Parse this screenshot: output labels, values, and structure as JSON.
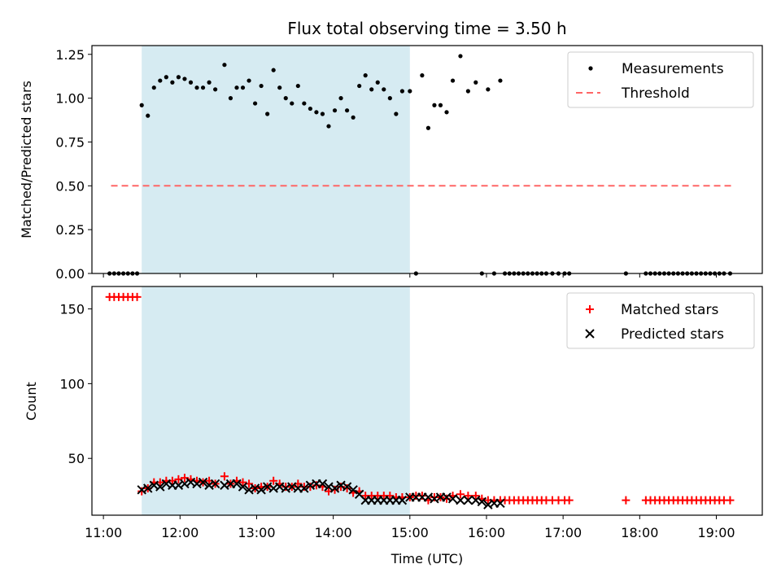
{
  "chart_data": [
    {
      "type": "scatter",
      "title": "Flux total observing time = 3.50 h",
      "xlabel": "",
      "ylabel": "Matched/Predicted stars",
      "ylim": [
        0.0,
        1.3
      ],
      "yticks": [
        0.0,
        0.25,
        0.5,
        0.75,
        1.0,
        1.25
      ],
      "ytick_labels": [
        "0.00",
        "0.25",
        "0.50",
        "0.75",
        "1.00",
        "1.25"
      ],
      "xlim": [
        10.85,
        19.6
      ],
      "xticks": [
        11,
        12,
        13,
        14,
        15,
        16,
        17,
        18,
        19
      ],
      "grid": false,
      "legend": "top-right",
      "shaded_span": [
        11.5,
        15.0
      ],
      "shaded_color": "#add8e6",
      "series": [
        {
          "name": "Measurements",
          "kind": "points",
          "color": "#000000",
          "x": [
            11.08,
            11.14,
            11.2,
            11.26,
            11.32,
            11.38,
            11.44,
            11.5,
            11.58,
            11.66,
            11.74,
            11.82,
            11.9,
            11.98,
            12.06,
            12.14,
            12.22,
            12.3,
            12.38,
            12.46,
            12.58,
            12.66,
            12.74,
            12.82,
            12.9,
            12.98,
            13.06,
            13.14,
            13.22,
            13.3,
            13.38,
            13.46,
            13.54,
            13.62,
            13.7,
            13.78,
            13.86,
            13.94,
            14.02,
            14.1,
            14.18,
            14.26,
            14.34,
            14.42,
            14.5,
            14.58,
            14.66,
            14.74,
            14.82,
            14.9,
            15.0,
            15.08,
            15.16,
            15.24,
            15.32,
            15.4,
            15.48,
            15.56,
            15.66,
            15.76,
            15.86,
            15.94,
            16.02,
            16.1,
            16.18,
            16.24,
            16.3,
            16.36,
            16.42,
            16.48,
            16.54,
            16.6,
            16.66,
            16.72,
            16.78,
            16.86,
            16.94,
            17.02,
            17.08,
            17.82,
            18.08,
            18.14,
            18.2,
            18.26,
            18.32,
            18.38,
            18.44,
            18.5,
            18.56,
            18.62,
            18.68,
            18.74,
            18.8,
            18.86,
            18.92,
            18.98,
            19.04,
            19.1,
            19.18
          ],
          "y": [
            0,
            0,
            0,
            0,
            0,
            0,
            0,
            0.96,
            0.9,
            1.06,
            1.1,
            1.12,
            1.09,
            1.12,
            1.11,
            1.09,
            1.06,
            1.06,
            1.09,
            1.05,
            1.19,
            1.0,
            1.06,
            1.06,
            1.1,
            0.97,
            1.07,
            0.91,
            1.16,
            1.06,
            1.0,
            0.97,
            1.07,
            0.97,
            0.94,
            0.92,
            0.91,
            0.84,
            0.93,
            1.0,
            0.93,
            0.89,
            1.07,
            1.13,
            1.05,
            1.09,
            1.05,
            1.0,
            0.91,
            1.04,
            1.04,
            0,
            1.13,
            0.83,
            0.96,
            0.96,
            0.92,
            1.1,
            1.24,
            1.04,
            1.09,
            0,
            1.05,
            0,
            1.1,
            0,
            0,
            0,
            0,
            0,
            0,
            0,
            0,
            0,
            0,
            0,
            0,
            0,
            0,
            0,
            0,
            0,
            0,
            0,
            0,
            0,
            0,
            0,
            0,
            0,
            0,
            0,
            0,
            0,
            0,
            0,
            0,
            0,
            0
          ]
        },
        {
          "name": "Threshold",
          "kind": "dashed-line",
          "color": "#ff6666",
          "x": [
            11.1,
            19.2
          ],
          "y": [
            0.5,
            0.5
          ]
        }
      ]
    },
    {
      "type": "scatter",
      "title": "",
      "xlabel": "Time (UTC)",
      "ylabel": "Count",
      "ylim": [
        12,
        165
      ],
      "yticks": [
        50,
        100,
        150
      ],
      "ytick_labels": [
        "50",
        "100",
        "150"
      ],
      "xlim": [
        10.85,
        19.6
      ],
      "xticks": [
        11,
        12,
        13,
        14,
        15,
        16,
        17,
        18,
        19
      ],
      "xtick_labels": [
        "11:00",
        "12:00",
        "13:00",
        "14:00",
        "15:00",
        "16:00",
        "17:00",
        "18:00",
        "19:00"
      ],
      "grid": false,
      "legend": "top-right",
      "shaded_span": [
        11.5,
        15.0
      ],
      "shaded_color": "#add8e6",
      "series": [
        {
          "name": "Matched stars",
          "marker": "+",
          "color": "#ff0000",
          "x": [
            11.08,
            11.14,
            11.2,
            11.26,
            11.32,
            11.38,
            11.44,
            11.5,
            11.58,
            11.66,
            11.74,
            11.82,
            11.9,
            11.98,
            12.06,
            12.14,
            12.22,
            12.3,
            12.38,
            12.46,
            12.58,
            12.66,
            12.74,
            12.82,
            12.9,
            12.98,
            13.06,
            13.14,
            13.22,
            13.3,
            13.38,
            13.46,
            13.54,
            13.62,
            13.7,
            13.78,
            13.86,
            13.94,
            14.02,
            14.1,
            14.18,
            14.26,
            14.34,
            14.42,
            14.5,
            14.58,
            14.66,
            14.74,
            14.82,
            14.9,
            15.0,
            15.08,
            15.16,
            15.24,
            15.32,
            15.4,
            15.48,
            15.56,
            15.66,
            15.76,
            15.86,
            15.94,
            16.02,
            16.1,
            16.18,
            16.24,
            16.3,
            16.36,
            16.42,
            16.48,
            16.54,
            16.6,
            16.66,
            16.72,
            16.78,
            16.86,
            16.94,
            17.02,
            17.08,
            17.82,
            18.08,
            18.14,
            18.2,
            18.26,
            18.32,
            18.38,
            18.44,
            18.5,
            18.56,
            18.62,
            18.68,
            18.74,
            18.8,
            18.86,
            18.92,
            18.98,
            19.04,
            19.1,
            19.18
          ],
          "y": [
            158,
            158,
            158,
            158,
            158,
            158,
            158,
            28,
            30,
            34,
            34,
            35,
            35,
            36,
            37,
            36,
            35,
            34,
            35,
            33,
            38,
            33,
            35,
            34,
            33,
            30,
            31,
            31,
            35,
            33,
            31,
            31,
            33,
            31,
            31,
            32,
            31,
            28,
            29,
            31,
            30,
            27,
            28,
            25,
            25,
            25,
            25,
            25,
            24,
            24,
            24,
            25,
            25,
            22,
            24,
            24,
            23,
            25,
            26,
            25,
            25,
            23,
            22,
            22,
            22,
            22,
            22,
            22,
            22,
            22,
            22,
            22,
            22,
            22,
            22,
            22,
            22,
            22,
            22,
            22,
            22,
            22,
            22,
            22,
            22,
            22,
            22,
            22,
            22,
            22,
            22,
            22,
            22,
            22,
            22,
            22,
            22,
            22,
            22
          ]
        },
        {
          "name": "Predicted stars",
          "marker": "x",
          "color": "#000000",
          "x": [
            11.5,
            11.58,
            11.66,
            11.74,
            11.82,
            11.9,
            11.98,
            12.06,
            12.14,
            12.22,
            12.3,
            12.38,
            12.46,
            12.58,
            12.66,
            12.74,
            12.82,
            12.9,
            12.98,
            13.06,
            13.14,
            13.22,
            13.3,
            13.38,
            13.46,
            13.54,
            13.62,
            13.7,
            13.78,
            13.86,
            13.94,
            14.02,
            14.1,
            14.18,
            14.26,
            14.34,
            14.42,
            14.5,
            14.58,
            14.66,
            14.74,
            14.82,
            14.9,
            15.0,
            15.08,
            15.16,
            15.24,
            15.32,
            15.4,
            15.48,
            15.56,
            15.66,
            15.76,
            15.86,
            15.94,
            16.02,
            16.1,
            16.18
          ],
          "y": [
            29,
            30,
            32,
            31,
            33,
            32,
            32,
            33,
            34,
            33,
            34,
            32,
            33,
            32,
            33,
            33,
            31,
            29,
            30,
            29,
            31,
            30,
            31,
            30,
            31,
            30,
            30,
            32,
            33,
            33,
            31,
            30,
            32,
            31,
            29,
            26,
            22,
            22,
            22,
            22,
            22,
            22,
            22,
            24,
            24,
            24,
            24,
            23,
            24,
            24,
            23,
            22,
            22,
            22,
            21,
            19,
            20,
            20
          ]
        }
      ]
    }
  ]
}
